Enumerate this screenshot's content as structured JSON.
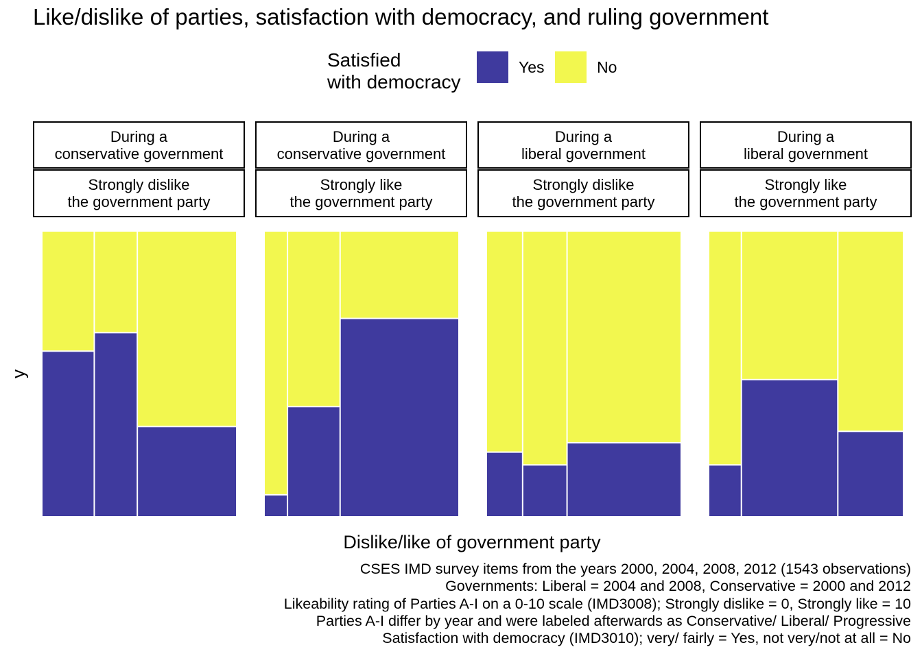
{
  "chart_data": {
    "type": "mosaic",
    "title": "Like/dislike of parties, satisfaction with democracy, and ruling government",
    "xlabel": "Dislike/like of government party",
    "ylabel": "y",
    "legend": {
      "title_lines": [
        "Satisfied",
        "with democracy"
      ],
      "placement": "top",
      "entries": [
        {
          "label": "Yes",
          "color": "#3F3A9E"
        },
        {
          "label": "No",
          "color": "#F2F74F"
        }
      ]
    },
    "panels": [
      {
        "government_lines": [
          "During a",
          "conservative government"
        ],
        "attitude_lines": [
          "Strongly dislike",
          "the government party"
        ],
        "columns": [
          {
            "width_share": 0.269,
            "yes_share": 0.58
          },
          {
            "width_share": 0.221,
            "yes_share": 0.645
          },
          {
            "width_share": 0.51,
            "yes_share": 0.315
          }
        ]
      },
      {
        "government_lines": [
          "During a",
          "conservative government"
        ],
        "attitude_lines": [
          "Strongly like",
          "the government party"
        ],
        "columns": [
          {
            "width_share": 0.12,
            "yes_share": 0.075
          },
          {
            "width_share": 0.27,
            "yes_share": 0.385
          },
          {
            "width_share": 0.61,
            "yes_share": 0.695
          }
        ]
      },
      {
        "government_lines": [
          "During a",
          "liberal government"
        ],
        "attitude_lines": [
          "Strongly dislike",
          "the government party"
        ],
        "columns": [
          {
            "width_share": 0.186,
            "yes_share": 0.225
          },
          {
            "width_share": 0.228,
            "yes_share": 0.18
          },
          {
            "width_share": 0.586,
            "yes_share": 0.258
          }
        ]
      },
      {
        "government_lines": [
          "During a",
          "liberal government"
        ],
        "attitude_lines": [
          "Strongly like",
          "the government party"
        ],
        "columns": [
          {
            "width_share": 0.168,
            "yes_share": 0.18
          },
          {
            "width_share": 0.495,
            "yes_share": 0.48
          },
          {
            "width_share": 0.337,
            "yes_share": 0.298
          }
        ]
      }
    ],
    "caption_lines": [
      "CSES IMD survey items from the years 2000, 2004, 2008, 2012 (1543 observations)",
      "Governments: Liberal = 2004 and 2008, Conservative = 2000 and 2012",
      "Likeability rating of Parties A-I on a 0-10 scale (IMD3008); Strongly dislike = 0, Strongly like = 10",
      "Parties A-I differ by year and were labeled afterwards as Conservative/ Liberal/ Progressive",
      "Satisfaction with democracy (IMD3010); very/ fairly = Yes, not very/not at all = No"
    ]
  }
}
